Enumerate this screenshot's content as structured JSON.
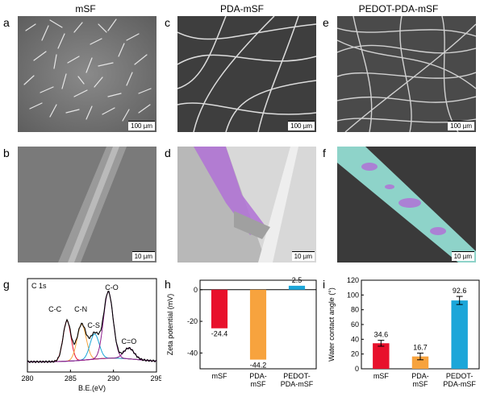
{
  "columns": {
    "mSF": "mSF",
    "PDA": "PDA-mSF",
    "PEDOT": "PEDOT-PDA-mSF"
  },
  "panels": {
    "a": {
      "label": "a",
      "scale": "100 µm"
    },
    "b": {
      "label": "b",
      "scale": "10 µm"
    },
    "c": {
      "label": "c",
      "scale": "100 µm"
    },
    "d": {
      "label": "d",
      "scale": "10 µm"
    },
    "e": {
      "label": "e",
      "scale": "100 µm"
    },
    "f": {
      "label": "f",
      "scale": "10 µm"
    },
    "g": {
      "label": "g"
    },
    "h": {
      "label": "h"
    },
    "i": {
      "label": "i"
    }
  },
  "colors": {
    "sem_gray": "#6f6f6f",
    "purple_overlay": "#b071d6",
    "teal_overlay": "#8ed3c9",
    "red": "#e8102b",
    "orange": "#f7a33e",
    "blue": "#1ba6d9",
    "purple": "#8e1f8e"
  },
  "chart_data": [
    {
      "type": "line",
      "title": "C 1s",
      "xlabel": "B.E.(eV)",
      "ylabel": "",
      "xlim": [
        280,
        295
      ],
      "xticks": [
        "280",
        "285",
        "290",
        "295"
      ],
      "peaks": [
        {
          "name": "C-C",
          "center": 284.6,
          "height": 0.45,
          "width": 0.65,
          "color": "#e8102b"
        },
        {
          "name": "C-N",
          "center": 286.3,
          "height": 0.4,
          "width": 0.75,
          "color": "#f7a33e"
        },
        {
          "name": "C-S",
          "center": 287.8,
          "height": 0.28,
          "width": 0.75,
          "color": "#1ba6d9"
        },
        {
          "name": "C-O",
          "center": 289.4,
          "height": 0.74,
          "width": 0.78,
          "color": "#8e1f8e"
        },
        {
          "name": "C=O",
          "center": 291.8,
          "height": 0.12,
          "width": 0.85,
          "color": "#8e1f8e"
        }
      ],
      "annotations": [
        "C-C",
        "C-N",
        "C-S",
        "C-O",
        "C=O"
      ]
    },
    {
      "type": "bar",
      "ylabel": "Zeta potential (mV)",
      "ylim": [
        -50,
        6
      ],
      "yticks": [
        "0",
        "-20",
        "-40"
      ],
      "categories": [
        "mSF",
        "PDA-mSF",
        "PEDOT-PDA-mSF"
      ],
      "category_lines": [
        [
          "mSF"
        ],
        [
          "PDA-",
          "mSF"
        ],
        [
          "PEDOT-",
          "PDA-mSF"
        ]
      ],
      "values": [
        -24.4,
        -44.2,
        2.5
      ],
      "value_labels": [
        "-24.4",
        "-44.2",
        "2.5"
      ],
      "colors": [
        "#e8102b",
        "#f7a33e",
        "#1ba6d9"
      ]
    },
    {
      "type": "bar",
      "ylabel": "Water contact angle (°)",
      "ylim": [
        0,
        120
      ],
      "yticks": [
        "0",
        "20",
        "40",
        "60",
        "80",
        "100",
        "120"
      ],
      "categories": [
        "mSF",
        "PDA-mSF",
        "PEDOT-PDA-mSF"
      ],
      "category_lines": [
        [
          "mSF"
        ],
        [
          "PDA-",
          "mSF"
        ],
        [
          "PEDOT-",
          "PDA-mSF"
        ]
      ],
      "values": [
        34.6,
        16.7,
        92.6
      ],
      "errors": [
        4.0,
        4.5,
        5.5
      ],
      "value_labels": [
        "34.6",
        "16.7",
        "92.6"
      ],
      "colors": [
        "#e8102b",
        "#f7a33e",
        "#1ba6d9"
      ]
    }
  ]
}
